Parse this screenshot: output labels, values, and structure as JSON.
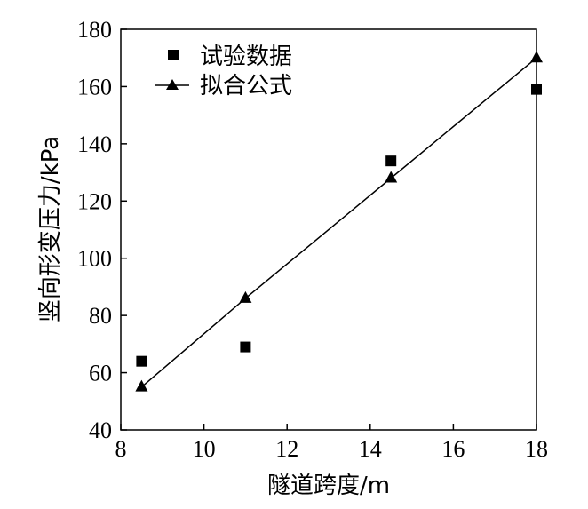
{
  "chart_data": {
    "type": "scatter",
    "xlabel": "隧道跨度/m",
    "ylabel": "竖向形变压力/kPa",
    "xlim": [
      8,
      18
    ],
    "ylim": [
      40,
      180
    ],
    "xticks": [
      "8",
      "10",
      "12",
      "14",
      "16",
      "18"
    ],
    "yticks": [
      "40",
      "60",
      "80",
      "100",
      "120",
      "140",
      "160",
      "180"
    ],
    "legend_position": "top-left",
    "series": [
      {
        "name": "试验数据",
        "marker": "square",
        "style": "markers",
        "x": [
          8.5,
          11.0,
          14.5,
          18.0
        ],
        "y": [
          64,
          69,
          134,
          159
        ]
      },
      {
        "name": "拟合公式",
        "marker": "triangle",
        "style": "line+markers",
        "x": [
          8.5,
          11.0,
          14.5,
          18.0
        ],
        "y": [
          55,
          86,
          128,
          170
        ]
      }
    ],
    "colors": {
      "marks": "#000000",
      "background": "#ffffff"
    }
  }
}
